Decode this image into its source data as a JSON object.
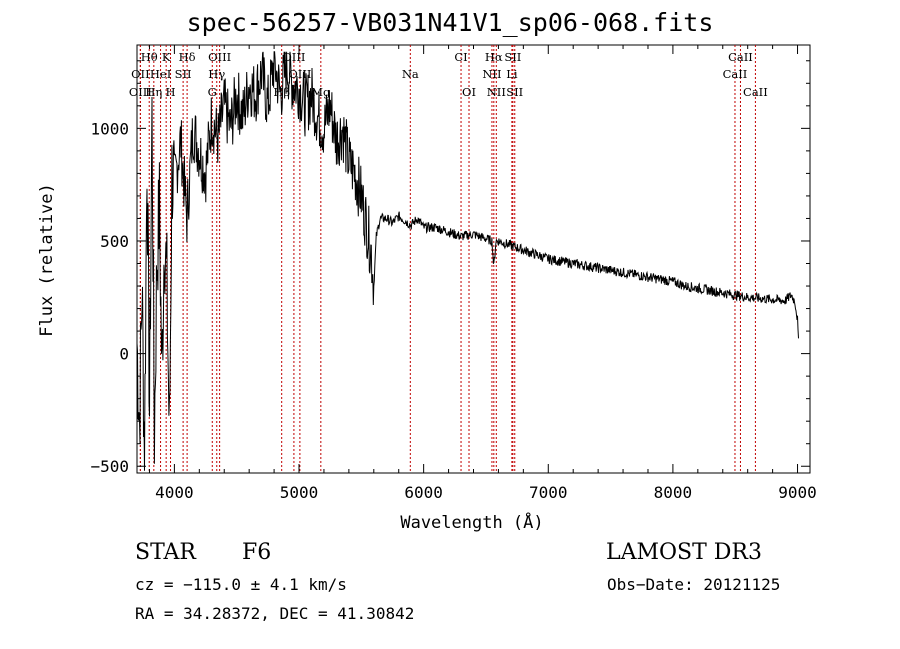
{
  "chart_data": {
    "type": "line",
    "title": "spec-56257-VB031N41V1_sp06-068.fits",
    "xlabel": "Wavelength (Å)",
    "ylabel": "Flux (relative)",
    "xlim": [
      3700,
      9100
    ],
    "ylim": [
      -530,
      1370
    ],
    "xticks": [
      4000,
      5000,
      6000,
      7000,
      8000,
      9000
    ],
    "yticks": [
      -500,
      0,
      500,
      1000
    ],
    "grid": false,
    "series": [
      {
        "name": "flux",
        "x": [
          3700,
          3720,
          3740,
          3760,
          3780,
          3800,
          3820,
          3840,
          3860,
          3880,
          3900,
          3920,
          3940,
          3960,
          3980,
          4000,
          4050,
          4100,
          4150,
          4200,
          4250,
          4300,
          4350,
          4400,
          4450,
          4500,
          4550,
          4600,
          4650,
          4700,
          4750,
          4800,
          4850,
          4900,
          4950,
          5000,
          5050,
          5100,
          5150,
          5200,
          5250,
          5300,
          5350,
          5400,
          5450,
          5500,
          5550,
          5580,
          5600,
          5620,
          5650,
          5700,
          5750,
          5800,
          5850,
          5900,
          5950,
          6000,
          6100,
          6200,
          6300,
          6400,
          6500,
          6550,
          6563,
          6580,
          6600,
          6700,
          6800,
          6900,
          7000,
          7100,
          7200,
          7300,
          7400,
          7500,
          7600,
          7700,
          7800,
          7900,
          8000,
          8100,
          8200,
          8300,
          8400,
          8500,
          8600,
          8700,
          8800,
          8900,
          8950,
          8980,
          9000,
          9010
        ],
        "y": [
          50,
          -300,
          300,
          -450,
          900,
          -250,
          1050,
          -350,
          400,
          650,
          -100,
          550,
          300,
          -380,
          800,
          750,
          950,
          600,
          1000,
          900,
          800,
          1050,
          950,
          1100,
          1000,
          1150,
          1050,
          1200,
          1150,
          1250,
          1100,
          1300,
          1150,
          1280,
          1200,
          1180,
          1100,
          1150,
          1050,
          1000,
          1100,
          950,
          1000,
          850,
          800,
          700,
          550,
          450,
          300,
          520,
          600,
          600,
          580,
          610,
          590,
          570,
          600,
          560,
          560,
          540,
          520,
          530,
          510,
          500,
          380,
          500,
          500,
          480,
          460,
          440,
          420,
          410,
          400,
          390,
          380,
          370,
          360,
          350,
          340,
          330,
          320,
          300,
          290,
          280,
          270,
          260,
          250,
          245,
          240,
          235,
          260,
          230,
          150,
          20
        ]
      }
    ],
    "spectral_lines": [
      {
        "label": "Hθ",
        "x": 3798
      },
      {
        "label": "K",
        "x": 3934
      },
      {
        "label": "Hδ",
        "x": 4102
      },
      {
        "label": "OIII",
        "x": 4363
      },
      {
        "label": "OIII",
        "x": 4959
      },
      {
        "label": "CI",
        "x": 6300
      },
      {
        "label": "Hα",
        "x": 6563
      },
      {
        "label": "SII",
        "x": 6716
      },
      {
        "label": "CaII",
        "x": 8542
      },
      {
        "label": "OII",
        "x": 3727
      },
      {
        "label": "HeI",
        "x": 3889
      },
      {
        "label": "SII",
        "x": 4070
      },
      {
        "label": "Hγ",
        "x": 4340
      },
      {
        "label": "OIII",
        "x": 5007
      },
      {
        "label": "Na",
        "x": 5893
      },
      {
        "label": "NII",
        "x": 6548
      },
      {
        "label": "Li",
        "x": 6708
      },
      {
        "label": "CaII",
        "x": 8498
      },
      {
        "label": "OIII",
        "x": 3727
      },
      {
        "label": "Hη",
        "x": 3835
      },
      {
        "label": "H",
        "x": 3969
      },
      {
        "label": "G",
        "x": 4304
      },
      {
        "label": "Hβ",
        "x": 4861
      },
      {
        "label": "Mg",
        "x": 5175
      },
      {
        "label": "OI",
        "x": 6364
      },
      {
        "label": "NII",
        "x": 6583
      },
      {
        "label": "SII",
        "x": 6731
      },
      {
        "label": "CaII",
        "x": 8662
      }
    ]
  },
  "info": {
    "object_class": "STAR",
    "subclass": "F6",
    "survey": "LAMOST DR3",
    "cz": "cz = −115.0 ± 4.1 km/s",
    "obs_date": "Obs−Date: 20121125",
    "coords": "RA =  34.28372, DEC =  41.30842"
  }
}
